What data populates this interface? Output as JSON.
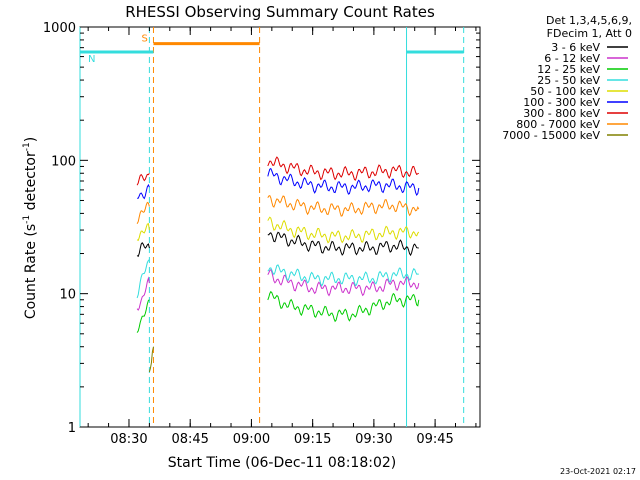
{
  "chart_data": {
    "type": "line",
    "title": "RHESSI Observing Summary Count Rates",
    "xlabel": "Start Time (06-Dec-11 08:18:02)",
    "ylabel_main": "Count Rate (s",
    "ylabel_sup1": "-1",
    "ylabel_mid": " detector",
    "ylabel_sup2": "-1",
    "ylabel_end": ")",
    "x_scale": "time",
    "x_range": [
      "08:18",
      "09:56"
    ],
    "x_ticks": [
      "08:30",
      "08:45",
      "09:00",
      "09:15",
      "09:30",
      "09:45"
    ],
    "y_scale": "log",
    "ylim": [
      1,
      1000
    ],
    "y_ticks": [
      {
        "value": 1,
        "label": "1"
      },
      {
        "value": 10,
        "label": "10"
      },
      {
        "value": 100,
        "label": "100"
      },
      {
        "value": 1000,
        "label": "1000"
      }
    ],
    "legend_header": [
      "Det 1,3,4,5,6,9,",
      "FDecim 1, Att 0"
    ],
    "legend_placement": "right",
    "timestamp": "23-Oct-2021 02:17",
    "series": [
      {
        "name": "3 - 6 keV",
        "color": "#000000",
        "segments": [
          {
            "times": [
              "08:32",
              "08:33",
              "08:34",
              "08:35"
            ],
            "values": [
              21,
              22,
              22,
              22
            ]
          },
          {
            "times": [
              "09:04",
              "09:06",
              "09:10",
              "09:15",
              "09:20",
              "09:25",
              "09:30",
              "09:35",
              "09:38",
              "09:41"
            ],
            "values": [
              29,
              27,
              25,
              23,
              22,
              22,
              22,
              23,
              22,
              22
            ]
          }
        ]
      },
      {
        "name": "6 - 12 keV",
        "color": "#cc33cc",
        "segments": [
          {
            "times": [
              "08:32",
              "08:33",
              "08:34",
              "08:35"
            ],
            "values": [
              8,
              9,
              11,
              12
            ]
          },
          {
            "times": [
              "09:04",
              "09:06",
              "09:10",
              "09:15",
              "09:20",
              "09:25",
              "09:30",
              "09:35",
              "09:38",
              "09:41"
            ],
            "values": [
              14,
              13,
              12,
              11,
              11,
              11,
              11,
              12,
              12,
              12
            ]
          }
        ]
      },
      {
        "name": "12 - 25 keV",
        "color": "#00cc00",
        "segments": [
          {
            "times": [
              "08:32",
              "08:33",
              "08:34",
              "08:35"
            ],
            "values": [
              5,
              6,
              8,
              9
            ]
          },
          {
            "times": [
              "09:04",
              "09:06",
              "09:10",
              "09:15",
              "09:20",
              "09:25",
              "09:30",
              "09:35",
              "09:38",
              "09:41"
            ],
            "values": [
              10,
              9,
              8,
              7.5,
              7,
              7,
              8,
              9,
              9,
              9
            ]
          }
        ]
      },
      {
        "name": "25 - 50 keV",
        "color": "#33dddd",
        "segments": [
          {
            "times": [
              "08:32",
              "08:33",
              "08:34",
              "08:35"
            ],
            "values": [
              10,
              12,
              15,
              18
            ]
          },
          {
            "times": [
              "09:04",
              "09:06",
              "09:10",
              "09:15",
              "09:20",
              "09:25",
              "09:30",
              "09:35",
              "09:38",
              "09:41"
            ],
            "values": [
              16,
              15,
              14,
              13,
              13,
              13,
              13,
              14,
              14,
              14
            ]
          }
        ]
      },
      {
        "name": "50 - 100 keV",
        "color": "#dddd00",
        "segments": [
          {
            "times": [
              "08:32",
              "08:33",
              "08:34",
              "08:35"
            ],
            "values": [
              28,
              29,
              30,
              30
            ]
          },
          {
            "times": [
              "09:04",
              "09:06",
              "09:10",
              "09:15",
              "09:20",
              "09:25",
              "09:30",
              "09:35",
              "09:38",
              "09:41"
            ],
            "values": [
              35,
              33,
              30,
              28,
              27,
              27,
              28,
              29,
              29,
              29
            ]
          }
        ]
      },
      {
        "name": "100 - 300 keV",
        "color": "#0000ff",
        "segments": [
          {
            "times": [
              "08:32",
              "08:33",
              "08:34",
              "08:35"
            ],
            "values": [
              52,
              55,
              60,
              63
            ]
          },
          {
            "times": [
              "09:04",
              "09:06",
              "09:10",
              "09:15",
              "09:20",
              "09:25",
              "09:30",
              "09:35",
              "09:38",
              "09:41"
            ],
            "values": [
              80,
              76,
              70,
              65,
              63,
              63,
              65,
              65,
              63,
              62
            ]
          }
        ]
      },
      {
        "name": "300 - 800 keV",
        "color": "#dd0000",
        "segments": [
          {
            "times": [
              "08:32",
              "08:33",
              "08:34",
              "08:35"
            ],
            "values": [
              68,
              70,
              75,
              80
            ]
          },
          {
            "times": [
              "09:04",
              "09:06",
              "09:10",
              "09:15",
              "09:20",
              "09:25",
              "09:30",
              "09:35",
              "09:38",
              "09:41"
            ],
            "values": [
              100,
              95,
              88,
              82,
              80,
              80,
              82,
              84,
              82,
              80
            ]
          }
        ]
      },
      {
        "name": "800 - 7000 keV",
        "color": "#ff8800",
        "segments": [
          {
            "times": [
              "08:32",
              "08:33",
              "08:34",
              "08:35"
            ],
            "values": [
              38,
              40,
              42,
              45
            ]
          },
          {
            "times": [
              "09:04",
              "09:06",
              "09:10",
              "09:15",
              "09:20",
              "09:25",
              "09:30",
              "09:35",
              "09:38",
              "09:41"
            ],
            "values": [
              52,
              50,
              47,
              44,
              43,
              43,
              45,
              46,
              44,
              43
            ]
          }
        ]
      },
      {
        "name": "7000 - 15000 keV",
        "color": "#808000",
        "segments": [
          {
            "times": [
              "08:35",
              "08:35.5",
              "08:36"
            ],
            "values": [
              2.5,
              3,
              4
            ]
          }
        ]
      }
    ],
    "flags": [
      {
        "label": "S",
        "color": "#ff8800",
        "style": "solid",
        "band_value": 750,
        "start": "08:36",
        "end": "09:02"
      },
      {
        "label": "N",
        "color": "#33dddd",
        "style": "solid",
        "band_value": 650,
        "start": "08:18",
        "end": "08:36"
      },
      {
        "label": "",
        "color": "#33dddd",
        "style": "solid",
        "band_value": 650,
        "start": "09:38",
        "end": "09:52"
      }
    ],
    "verticals": [
      {
        "time": "08:18",
        "color": "#33dddd",
        "style": "solid"
      },
      {
        "time": "08:35",
        "color": "#33dddd",
        "style": "dashed"
      },
      {
        "time": "08:36",
        "color": "#ff8800",
        "style": "dashed"
      },
      {
        "time": "09:02",
        "color": "#ff8800",
        "style": "dashed"
      },
      {
        "time": "09:38",
        "color": "#33dddd",
        "style": "solid"
      },
      {
        "time": "09:52",
        "color": "#33dddd",
        "style": "dashed"
      }
    ]
  }
}
